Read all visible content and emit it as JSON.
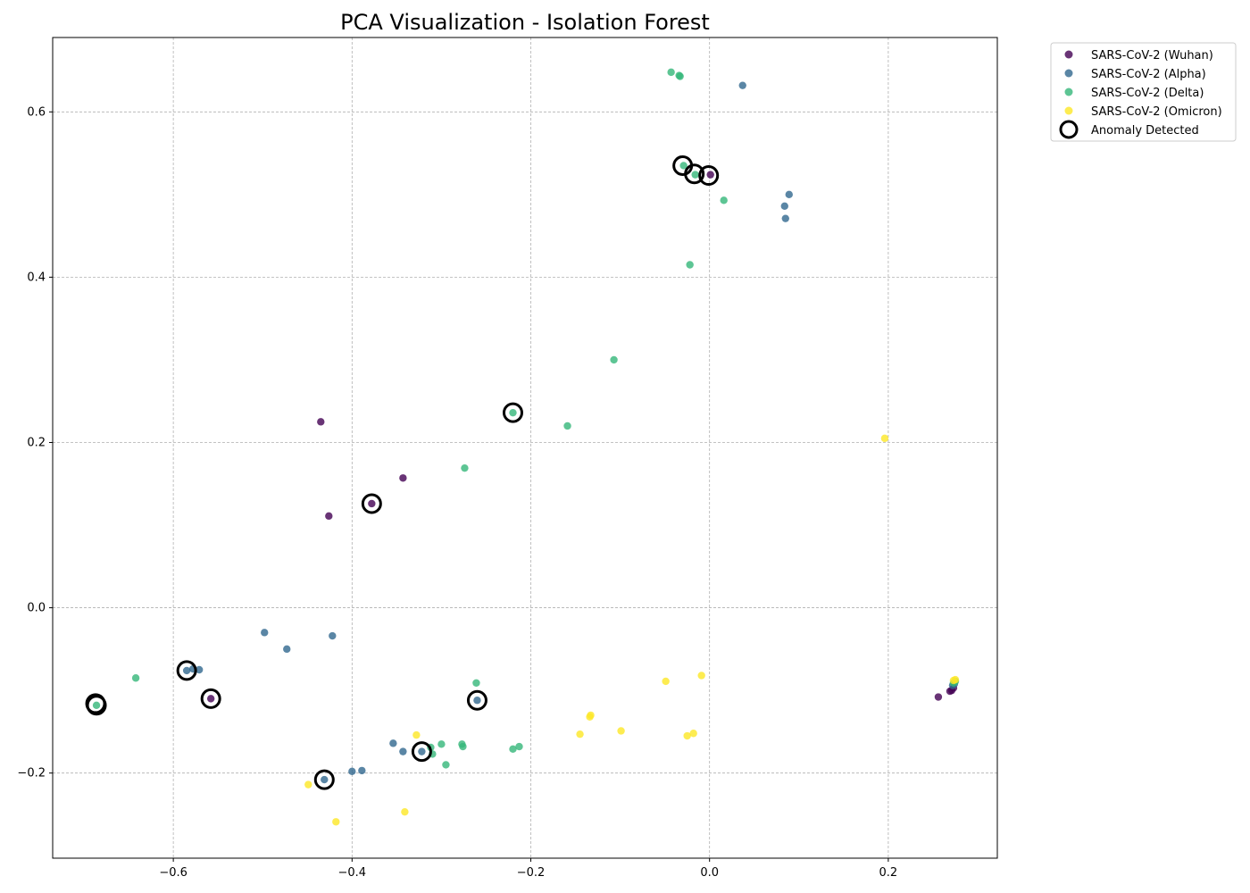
{
  "chart_data": {
    "type": "scatter",
    "title": "PCA Visualization - Isolation Forest",
    "xlabel": "",
    "ylabel": "",
    "xlim": [
      -0.735,
      0.322
    ],
    "ylim": [
      -0.303,
      0.69
    ],
    "xticks": [
      -0.6,
      -0.4,
      -0.2,
      0.0,
      0.2
    ],
    "xtick_labels": [
      "−0.6",
      "−0.4",
      "−0.2",
      "0.0",
      "0.2"
    ],
    "yticks": [
      -0.2,
      0.0,
      0.2,
      0.4,
      0.6
    ],
    "ytick_labels": [
      "−0.2",
      "0.0",
      "0.2",
      "0.4",
      "0.6"
    ],
    "grid": true,
    "legend_position": "outside-top-right",
    "series": [
      {
        "name": "SARS-CoV-2 (Wuhan)",
        "color": "#440154",
        "points": [
          [
            0.001,
            0.524
          ],
          [
            -0.435,
            0.225
          ],
          [
            -0.343,
            0.157
          ],
          [
            -0.378,
            0.126
          ],
          [
            -0.426,
            0.111
          ],
          [
            -0.558,
            -0.11
          ],
          [
            0.256,
            -0.108
          ],
          [
            0.269,
            -0.101
          ],
          [
            0.271,
            -0.1
          ],
          [
            0.273,
            -0.097
          ]
        ]
      },
      {
        "name": "SARS-CoV-2 (Alpha)",
        "color": "#31688e",
        "points": [
          [
            0.037,
            0.632
          ],
          [
            0.089,
            0.5
          ],
          [
            0.084,
            0.486
          ],
          [
            0.085,
            0.471
          ],
          [
            -0.498,
            -0.03
          ],
          [
            -0.473,
            -0.05
          ],
          [
            -0.422,
            -0.034
          ],
          [
            -0.585,
            -0.076
          ],
          [
            -0.578,
            -0.074
          ],
          [
            -0.571,
            -0.075
          ],
          [
            -0.26,
            -0.112
          ],
          [
            -0.354,
            -0.164
          ],
          [
            -0.343,
            -0.174
          ],
          [
            -0.322,
            -0.174
          ],
          [
            -0.4,
            -0.198
          ],
          [
            -0.389,
            -0.197
          ],
          [
            -0.431,
            -0.208
          ],
          [
            0.272,
            -0.094
          ],
          [
            0.274,
            -0.092
          ]
        ]
      },
      {
        "name": "SARS-CoV-2 (Delta)",
        "color": "#35b779",
        "points": [
          [
            -0.043,
            0.648
          ],
          [
            -0.034,
            0.644
          ],
          [
            -0.033,
            0.643
          ],
          [
            -0.029,
            0.535
          ],
          [
            -0.016,
            0.524
          ],
          [
            0.016,
            0.493
          ],
          [
            -0.022,
            0.415
          ],
          [
            -0.107,
            0.3
          ],
          [
            -0.22,
            0.236
          ],
          [
            -0.159,
            0.22
          ],
          [
            -0.274,
            0.169
          ],
          [
            -0.642,
            -0.085
          ],
          [
            -0.686,
            -0.118
          ],
          [
            -0.261,
            -0.091
          ],
          [
            -0.312,
            -0.169
          ],
          [
            -0.31,
            -0.177
          ],
          [
            -0.3,
            -0.165
          ],
          [
            -0.295,
            -0.19
          ],
          [
            -0.277,
            -0.165
          ],
          [
            -0.276,
            -0.168
          ],
          [
            -0.22,
            -0.171
          ],
          [
            -0.213,
            -0.168
          ],
          [
            0.273,
            -0.091
          ],
          [
            0.275,
            -0.089
          ]
        ]
      },
      {
        "name": "SARS-CoV-2 (Omicron)",
        "color": "#fde725",
        "points": [
          [
            0.196,
            0.205
          ],
          [
            -0.009,
            -0.082
          ],
          [
            -0.049,
            -0.089
          ],
          [
            -0.133,
            -0.13
          ],
          [
            -0.134,
            -0.132
          ],
          [
            -0.145,
            -0.153
          ],
          [
            -0.099,
            -0.149
          ],
          [
            -0.018,
            -0.152
          ],
          [
            -0.025,
            -0.155
          ],
          [
            -0.328,
            -0.154
          ],
          [
            -0.449,
            -0.214
          ],
          [
            -0.418,
            -0.259
          ],
          [
            -0.341,
            -0.247
          ],
          [
            0.273,
            -0.088
          ],
          [
            0.275,
            -0.087
          ]
        ]
      }
    ],
    "anomalies": {
      "name": "Anomaly Detected",
      "points": [
        [
          -0.03,
          0.535
        ],
        [
          -0.017,
          0.525
        ],
        [
          -0.001,
          0.523
        ],
        [
          -0.22,
          0.236
        ],
        [
          -0.378,
          0.126
        ],
        [
          -0.585,
          -0.076
        ],
        [
          -0.687,
          -0.116
        ],
        [
          -0.686,
          -0.118
        ],
        [
          -0.558,
          -0.11
        ],
        [
          -0.26,
          -0.112
        ],
        [
          -0.322,
          -0.174
        ],
        [
          -0.431,
          -0.208
        ]
      ]
    }
  }
}
